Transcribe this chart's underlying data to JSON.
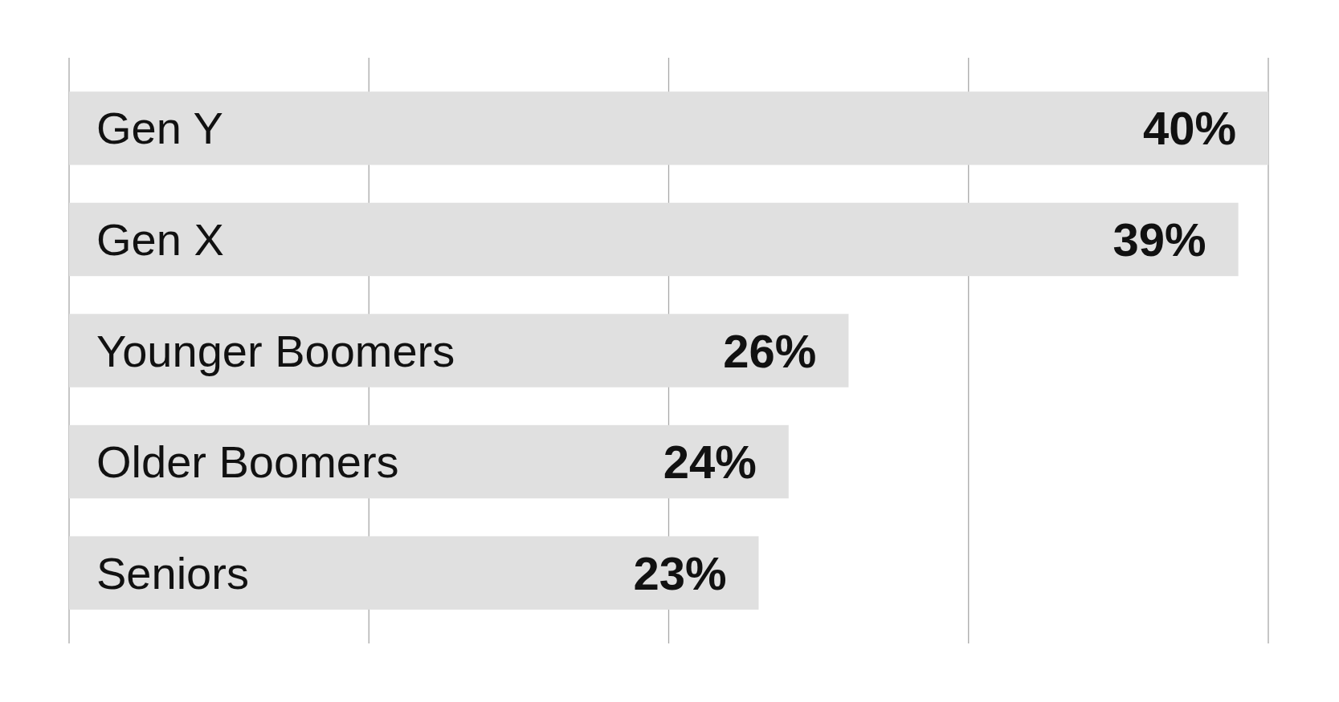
{
  "chart_data": {
    "type": "bar",
    "orientation": "horizontal",
    "categories": [
      "Gen Y",
      "Gen X",
      "Younger Boomers",
      "Older Boomers",
      "Seniors"
    ],
    "values": [
      40,
      39,
      26,
      24,
      23
    ],
    "color": "#e0e0e0",
    "value_labels": [
      "40%",
      "39%",
      "26%",
      "24%",
      "23%"
    ],
    "xlim": [
      0,
      40
    ],
    "xticks": [
      {
        "value": 0,
        "label": null
      },
      {
        "value": 10,
        "label": null
      },
      {
        "value": 20,
        "label": null
      },
      {
        "value": 30,
        "label": null
      },
      {
        "value": 40,
        "label": null
      }
    ],
    "grid": "x"
  }
}
